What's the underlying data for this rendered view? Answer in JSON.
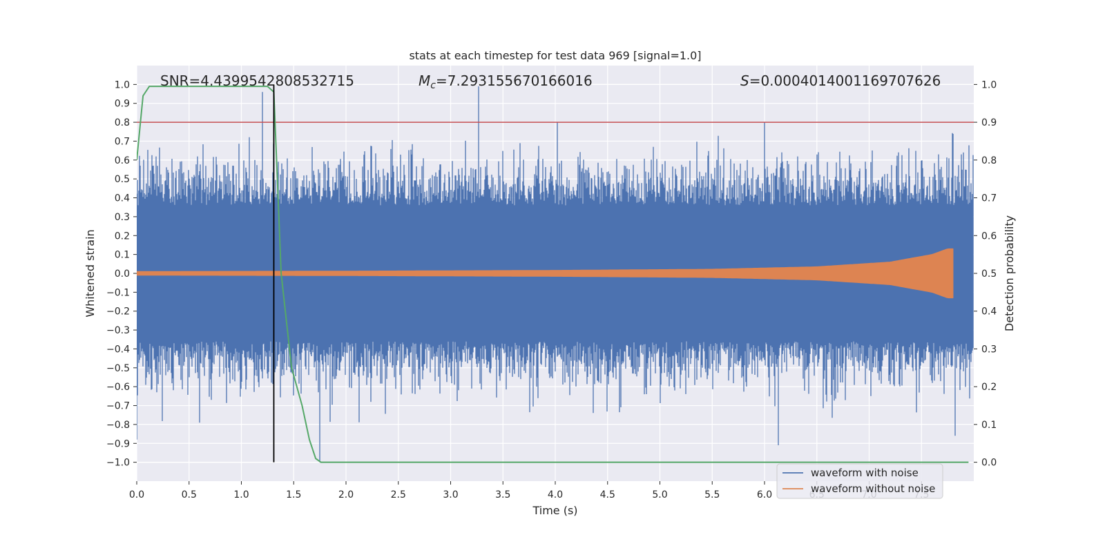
{
  "chart_data": {
    "type": "line",
    "title": "stats at each timestep for test data 969 [signal=1.0]",
    "xlabel": "Time (s)",
    "ylabel": "Whitened strain",
    "y2label": "Detection probability",
    "xlim": [
      0.0,
      8.0
    ],
    "ylim": [
      -1.1,
      1.1
    ],
    "y2lim": [
      -0.05,
      1.05
    ],
    "xticks": [
      0.0,
      0.5,
      1.0,
      1.5,
      2.0,
      2.5,
      3.0,
      3.5,
      4.0,
      4.5,
      5.0,
      5.5,
      6.0,
      6.5,
      7.0,
      7.5
    ],
    "xtick_labels": [
      "0.0",
      "0.5",
      "1.0",
      "1.5",
      "2.0",
      "2.5",
      "3.0",
      "3.5",
      "4.0",
      "4.5",
      "5.0",
      "5.5",
      "6.0",
      "6.5",
      "7.0",
      "7.5"
    ],
    "yticks": [
      -1.0,
      -0.9,
      -0.8,
      -0.7,
      -0.6,
      -0.5,
      -0.4,
      -0.3,
      -0.2,
      -0.1,
      0.0,
      0.1,
      0.2,
      0.3,
      0.4,
      0.5,
      0.6,
      0.7,
      0.8,
      0.9,
      1.0
    ],
    "ytick_labels": [
      "−1.0",
      "−0.9",
      "−0.8",
      "−0.7",
      "−0.6",
      "−0.5",
      "−0.4",
      "−0.3",
      "−0.2",
      "−0.1",
      "0.0",
      "0.1",
      "0.2",
      "0.3",
      "0.4",
      "0.5",
      "0.6",
      "0.7",
      "0.8",
      "0.9",
      "1.0"
    ],
    "y2ticks": [
      0.0,
      0.1,
      0.2,
      0.3,
      0.4,
      0.5,
      0.6,
      0.7,
      0.8,
      0.9,
      1.0
    ],
    "y2tick_labels": [
      "0.0",
      "0.1",
      "0.2",
      "0.3",
      "0.4",
      "0.5",
      "0.6",
      "0.7",
      "0.8",
      "0.9",
      "1.0"
    ],
    "grid": true,
    "legend_placement": "bottom-right",
    "stats": {
      "snr_label": "SNR=4.4399542808532715",
      "mc_symbol": "M",
      "mc_subscript": "c",
      "mc_value": "=7.293155670166016",
      "s_symbol": "S",
      "s_value": "=0.0004014001169707626"
    },
    "threshold_probability": 0.9,
    "marker_time": 1.31,
    "colors": {
      "noise": "#4c72b0",
      "clean": "#dd8452",
      "probability": "#55a868",
      "threshold": "#c44e52",
      "marker": "#000000",
      "background": "#eaeaf2"
    },
    "series": [
      {
        "name": "waveform with noise",
        "kind": "noisy strain, approx. range -1.0 to 0.98, typical envelope +/-0.5",
        "envelope_peaks": [
          {
            "t": 0.0,
            "v": -0.88
          },
          {
            "t": 0.6,
            "v": -0.79
          },
          {
            "t": 1.2,
            "v": 0.96
          },
          {
            "t": 1.75,
            "v": -1.0
          },
          {
            "t": 3.27,
            "v": 0.99
          },
          {
            "t": 4.02,
            "v": 0.8
          },
          {
            "t": 6.0,
            "v": 0.8
          },
          {
            "t": 6.13,
            "v": -0.91
          },
          {
            "t": 7.82,
            "v": -0.86
          }
        ]
      },
      {
        "name": "waveform without noise",
        "kind": "chirp, amplitude grows toward merger",
        "t_end": 7.8,
        "amplitude_points": [
          {
            "t": 0.0,
            "a": 0.01
          },
          {
            "t": 2.0,
            "a": 0.012
          },
          {
            "t": 4.0,
            "a": 0.016
          },
          {
            "t": 5.5,
            "a": 0.022
          },
          {
            "t": 6.5,
            "a": 0.035
          },
          {
            "t": 7.2,
            "a": 0.06
          },
          {
            "t": 7.6,
            "a": 0.1
          },
          {
            "t": 7.75,
            "a": 0.13
          },
          {
            "t": 7.8,
            "a": 0.13
          }
        ]
      },
      {
        "kind": "detection probability (right axis)",
        "x": [
          0.0,
          0.06,
          0.12,
          1.25,
          1.31,
          1.38,
          1.48,
          1.58,
          1.65,
          1.71,
          1.76,
          2.3,
          7.95
        ],
        "y": [
          0.8,
          0.97,
          0.995,
          0.995,
          0.98,
          0.5,
          0.25,
          0.15,
          0.06,
          0.01,
          0.0,
          0.0,
          0.0
        ]
      }
    ]
  }
}
